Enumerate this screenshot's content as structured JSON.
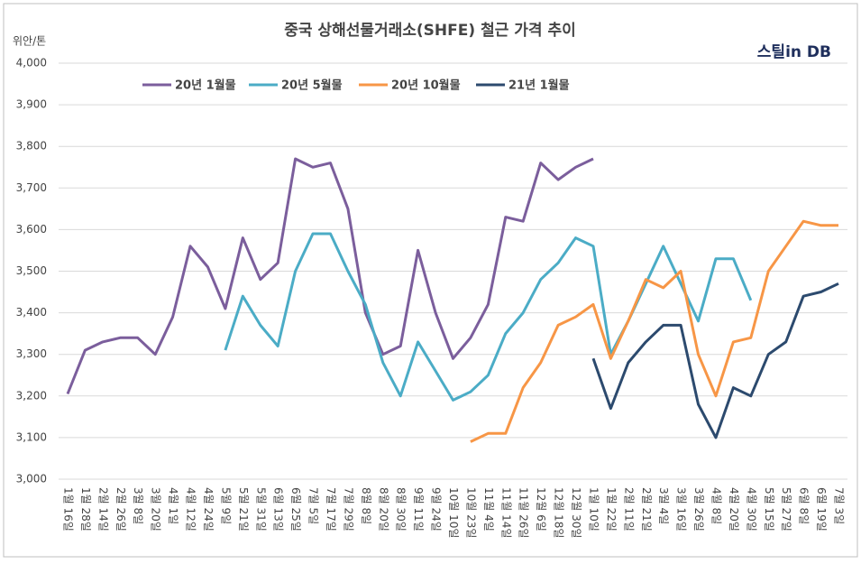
{
  "chart_data": {
    "type": "line",
    "title": "중국 상해선물거래소(SHFE) 철근 가격 추이",
    "y_label": "위안/톤",
    "logo": "스틸in DB",
    "categories": [
      "1월 16일",
      "1월 28일",
      "2월 14일",
      "2월 26일",
      "3월 8일",
      "3월 20일",
      "4월 1일",
      "4월 12일",
      "4월 24일",
      "5월 9일",
      "5월 21일",
      "5월 31일",
      "6월 13일",
      "6월 25일",
      "7월 5일",
      "7월 17일",
      "7월 29일",
      "8월 8일",
      "8월 20일",
      "8월 30일",
      "9월 11일",
      "9월 24일",
      "10월 10일",
      "10월 23일",
      "11월 4일",
      "11월 14일",
      "11월 26일",
      "12월 6일",
      "12월 18일",
      "12월 30일",
      "1월 10일",
      "1월 22일",
      "2월 11일",
      "2월 21일",
      "3월 4일",
      "3월 16일",
      "3월 26일",
      "4월 8일",
      "4월 20일",
      "4월 30일",
      "5월 15일",
      "5월 27일",
      "6월 8일",
      "6월 19일",
      "7월 3일"
    ],
    "series": [
      {
        "name": "20년 1월물",
        "color": "#7b5e9c",
        "values": [
          3205,
          3310,
          3330,
          3340,
          3340,
          3300,
          3390,
          3560,
          3510,
          3410,
          3580,
          3480,
          3520,
          3770,
          3750,
          3760,
          3650,
          3400,
          3300,
          3320,
          3550,
          3400,
          3290,
          3340,
          3420,
          3630,
          3620,
          3760,
          3720,
          3750,
          3770,
          null,
          null,
          null,
          null,
          null,
          null,
          null,
          null,
          null,
          null,
          null,
          null,
          null,
          null
        ]
      },
      {
        "name": "20년 5월물",
        "color": "#4bacc6",
        "values": [
          null,
          null,
          null,
          null,
          null,
          null,
          null,
          null,
          null,
          3310,
          3440,
          3370,
          3320,
          3500,
          3590,
          3590,
          3500,
          3420,
          3280,
          3200,
          3330,
          3260,
          3190,
          3210,
          3250,
          3350,
          3400,
          3480,
          3520,
          3580,
          3560,
          3300,
          3380,
          3470,
          3560,
          3470,
          3380,
          3530,
          3530,
          3430,
          null,
          null,
          null,
          null,
          null
        ]
      },
      {
        "name": "20년 10월물",
        "color": "#f79646",
        "values": [
          null,
          null,
          null,
          null,
          null,
          null,
          null,
          null,
          null,
          null,
          null,
          null,
          null,
          null,
          null,
          null,
          null,
          null,
          null,
          null,
          null,
          null,
          null,
          3090,
          3110,
          3110,
          3220,
          3280,
          3370,
          3390,
          3420,
          3290,
          3380,
          3480,
          3460,
          3500,
          3300,
          3200,
          3330,
          3340,
          3500,
          3560,
          3620,
          3610,
          3610
        ]
      },
      {
        "name": "21년 1월물",
        "color": "#2c4a6e",
        "values": [
          null,
          null,
          null,
          null,
          null,
          null,
          null,
          null,
          null,
          null,
          null,
          null,
          null,
          null,
          null,
          null,
          null,
          null,
          null,
          null,
          null,
          null,
          null,
          null,
          null,
          null,
          null,
          null,
          null,
          null,
          3290,
          3170,
          3280,
          3330,
          3370,
          3370,
          3180,
          3100,
          3220,
          3200,
          3300,
          3330,
          3440,
          3450,
          3470
        ]
      }
    ],
    "ylim": [
      3000,
      4000
    ],
    "yticks": [
      {
        "value": 3000,
        "label": "3,000"
      },
      {
        "value": 3100,
        "label": "3,100"
      },
      {
        "value": 3200,
        "label": "3,200"
      },
      {
        "value": 3300,
        "label": "3,300"
      },
      {
        "value": 3400,
        "label": "3,400"
      },
      {
        "value": 3500,
        "label": "3,500"
      },
      {
        "value": 3600,
        "label": "3,600"
      },
      {
        "value": 3700,
        "label": "3,700"
      },
      {
        "value": 3800,
        "label": "3,800"
      },
      {
        "value": 3900,
        "label": "3,900"
      },
      {
        "value": 4000,
        "label": "4,000"
      }
    ],
    "grid": true
  }
}
